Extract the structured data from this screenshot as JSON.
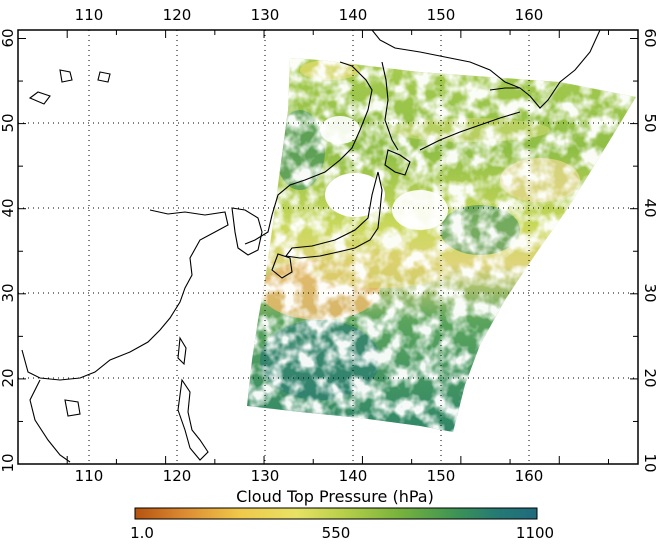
{
  "map": {
    "lon_range": [
      105,
      168
    ],
    "lat_range": [
      10,
      61
    ],
    "lon_ticks": [
      110,
      120,
      130,
      140,
      150,
      160
    ],
    "lat_ticks": [
      10,
      20,
      30,
      40,
      50,
      60
    ],
    "gridlines": true,
    "grid_style": "dotted",
    "region": "East Asia / Northwest Pacific",
    "coastlines": "black",
    "ocean_color": "#ffffff"
  },
  "data_layer": {
    "variable": "Cloud Top Pressure",
    "clear_sky_color": "#ffffff"
  },
  "colorbar": {
    "title": "Cloud Top Pressure (hPa)",
    "min_label": "1.0",
    "mid_label": "550",
    "max_label": "1100",
    "colors": [
      "#b5530f",
      "#dc8a32",
      "#f0c84a",
      "#e8e264",
      "#b7cf49",
      "#77b23c",
      "#3d9355",
      "#257a73",
      "#1f6b7e"
    ]
  }
}
